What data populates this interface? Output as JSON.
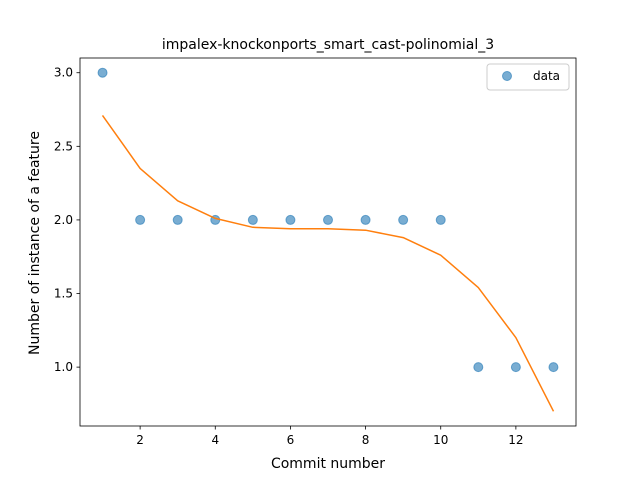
{
  "chart_data": {
    "type": "scatter",
    "title": "impalex-knockonports_smart_cast-polinomial_3",
    "xlabel": "Commit number",
    "ylabel": "Number of instance of a feature",
    "xlim": [
      0.4,
      13.6
    ],
    "ylim": [
      0.6,
      3.1
    ],
    "x_ticks": [
      2,
      4,
      6,
      8,
      10,
      12
    ],
    "y_ticks": [
      1.0,
      1.5,
      2.0,
      2.5,
      3.0
    ],
    "x_tick_labels": [
      "2",
      "4",
      "6",
      "8",
      "10",
      "12"
    ],
    "y_tick_labels": [
      "1.0",
      "1.5",
      "2.0",
      "2.5",
      "3.0"
    ],
    "grid": false,
    "legend": {
      "position": "top-right",
      "entries": [
        "data"
      ]
    },
    "series": [
      {
        "name": "data",
        "kind": "scatter",
        "color": "#1f77b4",
        "x": [
          1,
          2,
          3,
          4,
          5,
          6,
          7,
          8,
          9,
          10,
          11,
          12,
          13
        ],
        "y": [
          3,
          2,
          2,
          2,
          2,
          2,
          2,
          2,
          2,
          2,
          1,
          1,
          1
        ]
      },
      {
        "kind": "line",
        "color": "#ff7f0e",
        "x": [
          1,
          2,
          3,
          4,
          5,
          6,
          7,
          8,
          9,
          10,
          11,
          12,
          13
        ],
        "y": [
          2.71,
          2.35,
          2.13,
          2.01,
          1.95,
          1.94,
          1.94,
          1.93,
          1.88,
          1.76,
          1.54,
          1.2,
          0.7
        ]
      }
    ]
  }
}
